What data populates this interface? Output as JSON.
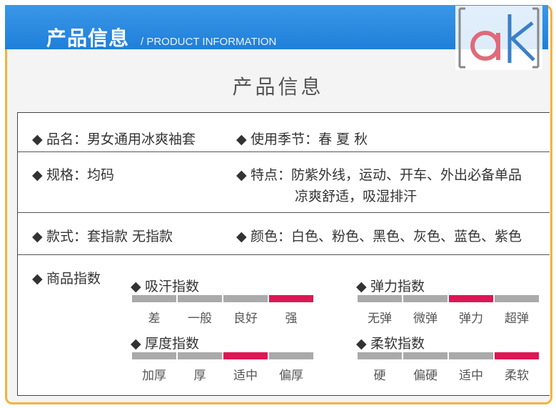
{
  "header": {
    "title": "产品信息",
    "subtitle": "/ PRODUCT INFORMATION"
  },
  "logo": {
    "text": "ak"
  },
  "section_title": "产品信息",
  "bullet": "◆",
  "rows": [
    {
      "left": "品名：男女通用冰爽袖套",
      "right": "使用季节：春  夏   秋"
    },
    {
      "left": "规格：均码",
      "right": "特点：防紫外线，运动、开车、外出必备单品",
      "right_line2": "凉爽舒适，吸湿排汗"
    },
    {
      "left": "款式：套指款  无指款",
      "right": "颜色：白色、粉色、黑色、灰色、蓝色、紫色"
    }
  ],
  "indices_label": "商品指数",
  "indices": [
    {
      "name": "吸汗指数",
      "levels": [
        "差",
        "一般",
        "良好",
        "强"
      ],
      "active": 3
    },
    {
      "name": "弹力指数",
      "levels": [
        "无弹",
        "微弹",
        "弹力",
        "超弹"
      ],
      "active": 2
    },
    {
      "name": "厚度指数",
      "levels": [
        "加厚",
        "厚",
        "适中",
        "偏厚"
      ],
      "active": 2
    },
    {
      "name": "柔软指数",
      "levels": [
        "硬",
        "偏硬",
        "适中",
        "柔软"
      ],
      "active": 3
    }
  ],
  "colors": {
    "accent": "#1f7fd9",
    "active_bar": "#dd1654",
    "inactive_bar": "#aaaaaa",
    "frame": "#f3b33d"
  }
}
